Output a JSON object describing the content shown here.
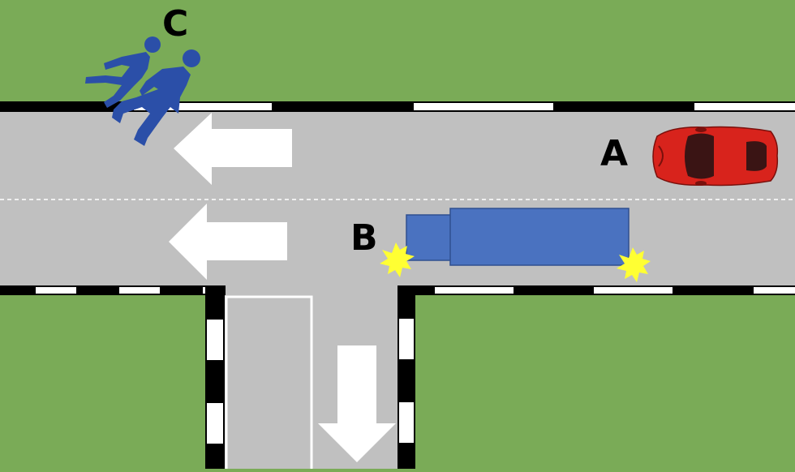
{
  "colors": {
    "grass": "#7aab57",
    "road": "#c0c0c0",
    "kerb_dark": "#000000",
    "kerb_light": "#ffffff",
    "car": "#d8231c",
    "truck": "#4a72c0",
    "pedestrians": "#2b4fa8",
    "impact": "#ffff33"
  },
  "labels": {
    "car": "A",
    "truck": "B",
    "pedestrians": "C"
  },
  "icons": {
    "car": "red-sports-car-icon",
    "truck": "blue-truck-icon",
    "pedestrians": "two-running-people-icon",
    "impact": "collision-star-icon",
    "arrow": "direction-arrow-icon"
  }
}
